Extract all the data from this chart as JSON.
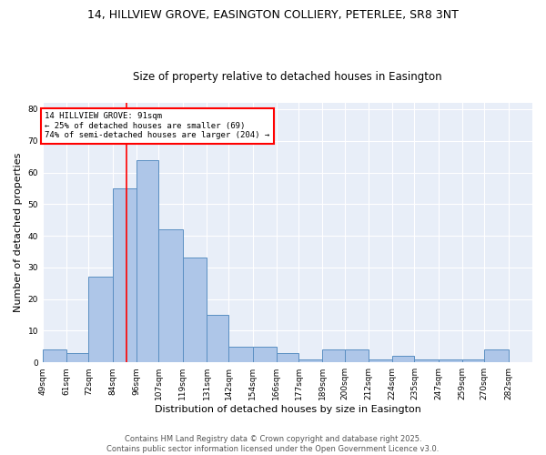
{
  "title_line1": "14, HILLVIEW GROVE, EASINGTON COLLIERY, PETERLEE, SR8 3NT",
  "title_line2": "Size of property relative to detached houses in Easington",
  "xlabel": "Distribution of detached houses by size in Easington",
  "ylabel": "Number of detached properties",
  "bin_labels": [
    "49sqm",
    "61sqm",
    "72sqm",
    "84sqm",
    "96sqm",
    "107sqm",
    "119sqm",
    "131sqm",
    "142sqm",
    "154sqm",
    "166sqm",
    "177sqm",
    "189sqm",
    "200sqm",
    "212sqm",
    "224sqm",
    "235sqm",
    "247sqm",
    "259sqm",
    "270sqm",
    "282sqm"
  ],
  "bin_edges": [
    49,
    61,
    72,
    84,
    96,
    107,
    119,
    131,
    142,
    154,
    166,
    177,
    189,
    200,
    212,
    224,
    235,
    247,
    259,
    270,
    282,
    294
  ],
  "bar_heights": [
    4,
    3,
    27,
    55,
    64,
    42,
    33,
    15,
    5,
    5,
    3,
    1,
    4,
    4,
    1,
    2,
    1,
    1,
    1,
    4,
    0
  ],
  "bar_color": "#aec6e8",
  "bar_edge_color": "#5a8fc2",
  "red_line_x": 91,
  "annotation_text": "14 HILLVIEW GROVE: 91sqm\n← 25% of detached houses are smaller (69)\n74% of semi-detached houses are larger (204) →",
  "annotation_box_color": "white",
  "annotation_box_edge": "red",
  "ylim": [
    0,
    82
  ],
  "yticks": [
    0,
    10,
    20,
    30,
    40,
    50,
    60,
    70,
    80
  ],
  "footer_line1": "Contains HM Land Registry data © Crown copyright and database right 2025.",
  "footer_line2": "Contains public sector information licensed under the Open Government Licence v3.0.",
  "bg_color": "#e8eef8",
  "grid_color": "white",
  "title_fontsize": 9,
  "subtitle_fontsize": 8.5,
  "tick_fontsize": 6.5,
  "label_fontsize": 8,
  "annot_fontsize": 6.5,
  "footer_fontsize": 6
}
